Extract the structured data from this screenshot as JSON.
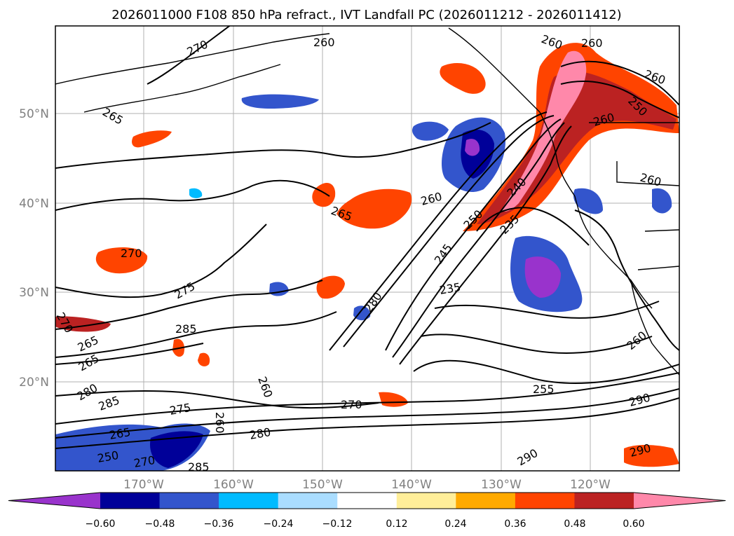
{
  "title": "2026011000 F108 850 hPa refract., IVT Landfall PC (2026011212 - 2026011412)",
  "lat_labels": [
    "50°N",
    "40°N",
    "30°N",
    "20°N"
  ],
  "lon_labels": [
    "170°W",
    "160°W",
    "150°W",
    "140°W",
    "130°W",
    "120°W"
  ],
  "colorbar": {
    "ticks": [
      "−0.60",
      "−0.48",
      "−0.36",
      "−0.24",
      "−0.12",
      "0.12",
      "0.24",
      "0.36",
      "0.48",
      "0.60"
    ],
    "colors": [
      "#9933cc",
      "#000099",
      "#3355cc",
      "#00bbff",
      "#aaddff",
      "#ffffff",
      "#ffee99",
      "#ffaa00",
      "#ff4400",
      "#bb2222",
      "#ff88aa"
    ]
  },
  "contour_labels": [
    "270",
    "260",
    "265",
    "260",
    "260",
    "250",
    "260",
    "260",
    "260",
    "265",
    "260",
    "260",
    "270",
    "265",
    "275",
    "285",
    "270",
    "265",
    "280",
    "285",
    "275",
    "260",
    "265",
    "250",
    "270",
    "285",
    "280",
    "270",
    "280",
    "245",
    "240",
    "235",
    "235",
    "250",
    "255",
    "260",
    "290",
    "290",
    "290"
  ]
}
